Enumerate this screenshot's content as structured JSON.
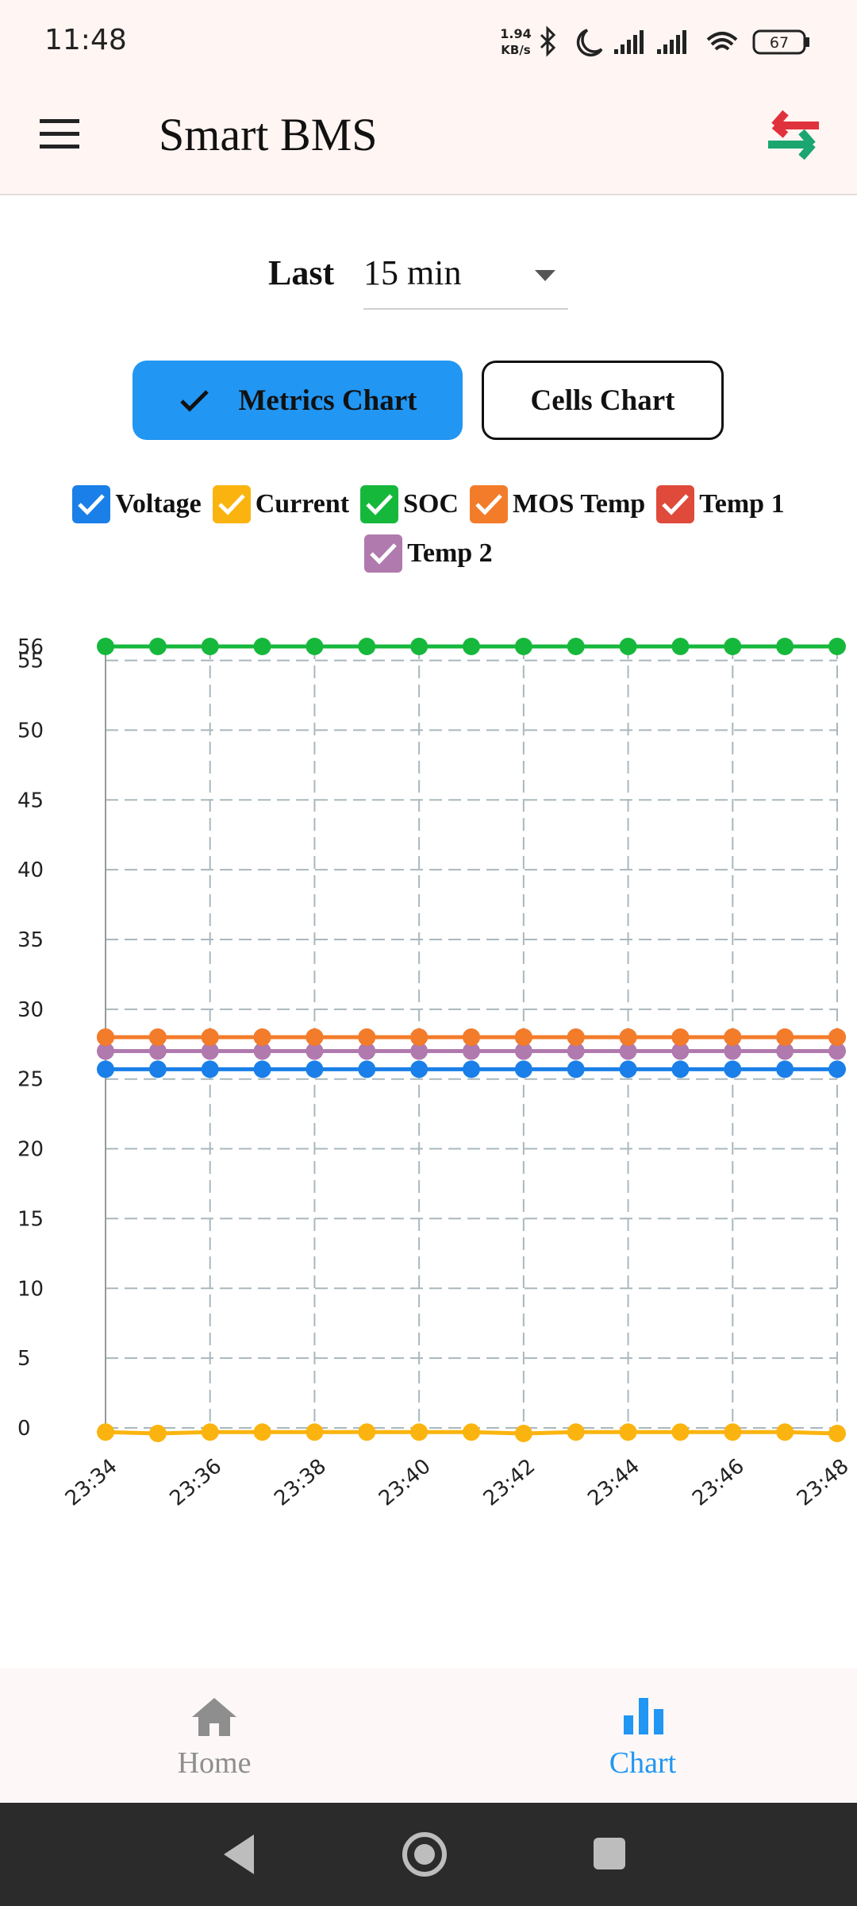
{
  "status_bar": {
    "time": "11:48",
    "net_speed": "1.94",
    "net_unit": "KB/s",
    "battery": "67"
  },
  "app_bar": {
    "title": "Smart BMS"
  },
  "range": {
    "label": "Last",
    "value": "15 min"
  },
  "tabs": [
    "Metrics Chart",
    "Cells Chart"
  ],
  "chart_data": {
    "type": "line",
    "categories": [
      "23:34",
      null,
      "23:36",
      null,
      "23:38",
      null,
      "23:40",
      null,
      "23:42",
      null,
      "23:44",
      null,
      "23:46",
      null,
      "23:48"
    ],
    "series": [
      {
        "name": "Voltage",
        "color": "#1a7fe8",
        "values": [
          25.7,
          25.7,
          25.7,
          25.7,
          25.7,
          25.7,
          25.7,
          25.7,
          25.7,
          25.7,
          25.7,
          25.7,
          25.7,
          25.7,
          25.7
        ]
      },
      {
        "name": "Current",
        "color": "#fbb40f",
        "values": [
          -0.3,
          -0.4,
          -0.3,
          -0.3,
          -0.3,
          -0.3,
          -0.3,
          -0.3,
          -0.4,
          -0.3,
          -0.3,
          -0.3,
          -0.3,
          -0.3,
          -0.4
        ]
      },
      {
        "name": "SOC",
        "color": "#16b83c",
        "values": [
          56,
          56,
          56,
          56,
          56,
          56,
          56,
          56,
          56,
          56,
          56,
          56,
          56,
          56,
          56
        ]
      },
      {
        "name": "MOS Temp",
        "color": "#f37c2a",
        "values": [
          28,
          28,
          28,
          28,
          28,
          28,
          28,
          28,
          28,
          28,
          28,
          28,
          28,
          28,
          28
        ]
      },
      {
        "name": "Temp 1",
        "color": "#e04a3b",
        "values": [
          28,
          28,
          28,
          28,
          28,
          28,
          28,
          28,
          28,
          28,
          28,
          28,
          28,
          28,
          28
        ]
      },
      {
        "name": "Temp 2",
        "color": "#b07aae",
        "values": [
          27,
          27,
          27,
          27,
          27,
          27,
          27,
          27,
          27,
          27,
          27,
          27,
          27,
          27,
          27
        ]
      }
    ],
    "ylim": [
      -0.4,
      56
    ],
    "yticks": [
      0,
      5,
      10,
      15,
      20,
      25,
      30,
      35,
      40,
      45,
      50,
      55,
      56
    ],
    "grid": true
  },
  "nav": [
    "Home",
    "Chart"
  ]
}
